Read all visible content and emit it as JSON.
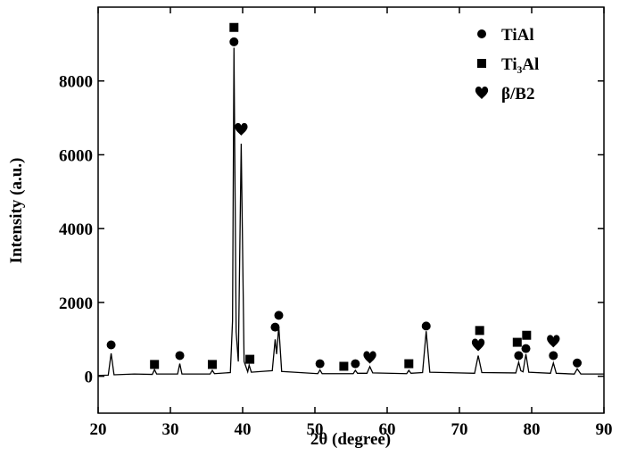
{
  "chart_data": {
    "type": "line",
    "x_label": "2θ (degree)",
    "y_label": "Intensity (a.u.)",
    "color": "#000000",
    "x": [
      20,
      21.4,
      21.8,
      22.2,
      25,
      27.5,
      27.8,
      28.1,
      31.0,
      31.3,
      31.6,
      35.5,
      35.8,
      36.1,
      38.3,
      38.6,
      38.8,
      39.1,
      39.4,
      39.8,
      40.2,
      40.7,
      40.9,
      41.2,
      44.1,
      44.5,
      44.7,
      45.0,
      45.4,
      50.4,
      50.7,
      51.0,
      55.3,
      55.6,
      55.9,
      57.2,
      57.6,
      58.0,
      62.7,
      63.0,
      63.3,
      64.9,
      65.4,
      65.9,
      72.1,
      72.6,
      73.1,
      77.8,
      78.2,
      78.5,
      78.8,
      79.2,
      79.6,
      82.6,
      83.0,
      83.4,
      85.9,
      86.3,
      86.8,
      90
    ],
    "values": [
      20,
      30,
      620,
      40,
      60,
      50,
      180,
      60,
      60,
      340,
      60,
      60,
      160,
      70,
      100,
      1500,
      8900,
      1200,
      400,
      6300,
      400,
      120,
      300,
      110,
      150,
      1000,
      600,
      1350,
      130,
      70,
      170,
      70,
      70,
      160,
      80,
      80,
      260,
      90,
      70,
      160,
      80,
      100,
      1220,
      110,
      80,
      560,
      100,
      90,
      380,
      150,
      120,
      600,
      110,
      80,
      360,
      80,
      60,
      200,
      60,
      60
    ],
    "series": [
      {
        "name": "TiAl",
        "marker": "circle",
        "color": "#000000",
        "x": [
          21.8,
          31.3,
          38.8,
          44.5,
          45.0,
          50.7,
          55.6,
          65.4,
          78.2,
          79.2,
          83.0,
          86.3
        ],
        "y": [
          850,
          560,
          9060,
          1330,
          1650,
          340,
          340,
          1360,
          560,
          750,
          560,
          360
        ]
      },
      {
        "name": "Ti₃Al",
        "marker": "square",
        "color": "#000000",
        "x": [
          27.8,
          35.8,
          38.8,
          41.0,
          54.0,
          63.0,
          72.8,
          78.0,
          79.3
        ],
        "y": [
          320,
          320,
          9450,
          460,
          270,
          340,
          1240,
          920,
          1110
        ]
      },
      {
        "name": "β/B2",
        "marker": "heart",
        "color": "#000000",
        "x": [
          39.8,
          57.6,
          72.6,
          83.0
        ],
        "y": [
          6690,
          510,
          850,
          950
        ]
      }
    ],
    "xlim": [
      20,
      90
    ],
    "ylim": [
      -1000,
      10000
    ],
    "xticks": [
      20,
      30,
      40,
      50,
      60,
      70,
      80,
      90
    ],
    "yticks": [
      0,
      2000,
      4000,
      6000,
      8000
    ],
    "legend": "upper right"
  }
}
